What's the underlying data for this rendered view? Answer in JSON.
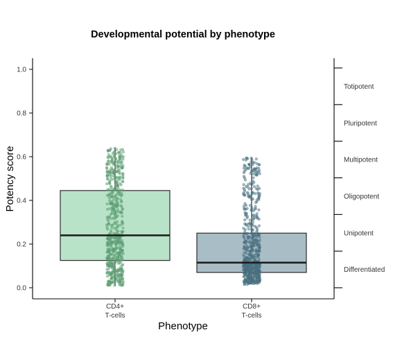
{
  "colors": {
    "cd4_fill": "#b9e3c9",
    "cd4_points": "#5d9e74",
    "cd8_fill": "#a9bdc6",
    "cd8_points": "#47707f",
    "box_stroke": "#2b2b2b",
    "axis": "#000000",
    "text": "#333333"
  },
  "chart_data": {
    "type": "box",
    "title": "Developmental potential by phenotype",
    "xlabel": "Phenotype",
    "ylabel": "Potency score",
    "ylim": [
      0,
      1.0
    ],
    "yticks": [
      "0.0",
      "0.2",
      "0.4",
      "0.6",
      "0.8",
      "1.0"
    ],
    "grid": false,
    "jitter_points": true,
    "groups": [
      {
        "label_line1": "CD4+",
        "label_line2": "T-cells",
        "whisker_low": 0.01,
        "q1": 0.125,
        "median": 0.24,
        "q3": 0.445,
        "whisker_high": 0.64
      },
      {
        "label_line1": "CD8+",
        "label_line2": "T-cells",
        "whisker_low": 0.015,
        "q1": 0.07,
        "median": 0.115,
        "q3": 0.25,
        "whisker_high": 0.595
      }
    ],
    "secondary_axis": {
      "categories": [
        "Totipotent",
        "Pluripotent",
        "Multipotent",
        "Oligopotent",
        "Unipotent",
        "Differentiated"
      ]
    }
  }
}
